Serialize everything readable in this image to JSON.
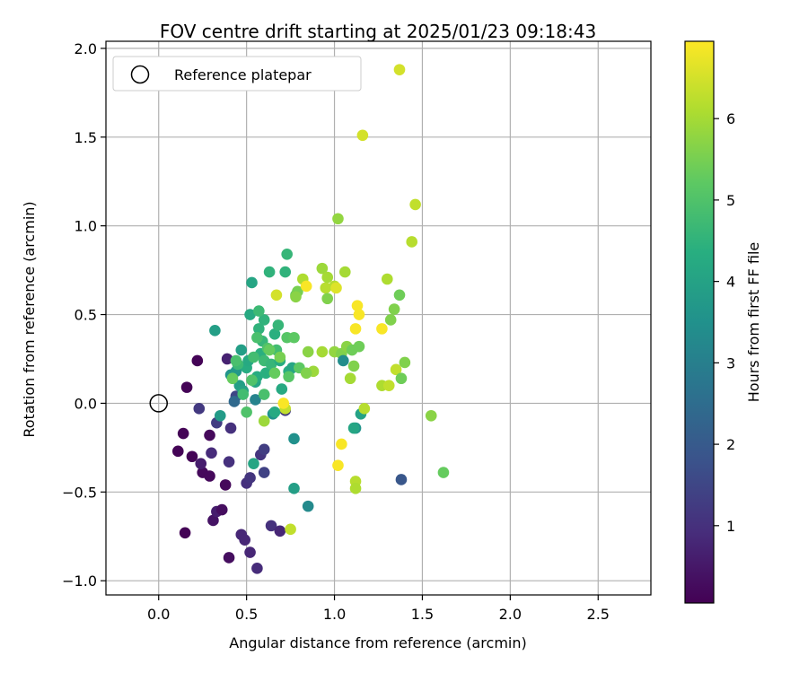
{
  "chart_data": {
    "type": "scatter",
    "title": "FOV centre drift starting at 2025/01/23 09:18:43",
    "xlabel": "Angular distance from reference (arcmin)",
    "ylabel": "Rotation from reference (arcmin)",
    "xlim": [
      -0.3,
      2.8
    ],
    "ylim": [
      -1.08,
      2.04
    ],
    "xticks": [
      0.0,
      0.5,
      1.0,
      1.5,
      2.0,
      2.5
    ],
    "xtick_labels": [
      "0.0",
      "0.5",
      "1.0",
      "1.5",
      "2.0",
      "2.5"
    ],
    "yticks": [
      -1.0,
      -0.5,
      0.0,
      0.5,
      1.0,
      1.5,
      2.0
    ],
    "ytick_labels": [
      "−1.0",
      "−0.5",
      "0.0",
      "0.5",
      "1.0",
      "1.5",
      "2.0"
    ],
    "grid": true,
    "legend": {
      "position": "top-left",
      "label": "Reference platepar"
    },
    "reference_point": {
      "x": 0.0,
      "y": 0.0
    },
    "colorbar": {
      "label": "Hours from first FF file",
      "range": [
        0.05,
        6.95
      ],
      "ticks": [
        1,
        2,
        3,
        4,
        5,
        6
      ],
      "tick_labels": [
        "1",
        "2",
        "3",
        "4",
        "5",
        "6"
      ],
      "colormap": "viridis"
    },
    "points": [
      [
        0.22,
        0.24,
        0.1
      ],
      [
        0.16,
        0.09,
        0.1
      ],
      [
        0.14,
        -0.17,
        0.1
      ],
      [
        0.11,
        -0.27,
        0.1
      ],
      [
        0.19,
        -0.3,
        0.1
      ],
      [
        0.15,
        -0.73,
        0.1
      ],
      [
        0.29,
        -0.18,
        0.2
      ],
      [
        0.25,
        -0.39,
        0.2
      ],
      [
        0.29,
        -0.41,
        0.2
      ],
      [
        0.24,
        -0.34,
        0.6
      ],
      [
        0.3,
        -0.28,
        0.9
      ],
      [
        0.23,
        -0.03,
        1.2
      ],
      [
        0.31,
        -0.66,
        0.4
      ],
      [
        0.33,
        -0.61,
        0.6
      ],
      [
        0.36,
        -0.6,
        0.3
      ],
      [
        0.38,
        -0.46,
        0.2
      ],
      [
        0.4,
        -0.87,
        0.3
      ],
      [
        0.4,
        -0.33,
        1.0
      ],
      [
        0.41,
        -0.14,
        1.0
      ],
      [
        0.33,
        -0.11,
        1.3
      ],
      [
        0.39,
        0.25,
        0.7
      ],
      [
        0.44,
        0.04,
        1.5
      ],
      [
        0.47,
        -0.74,
        0.8
      ],
      [
        0.49,
        -0.77,
        0.8
      ],
      [
        0.5,
        -0.45,
        1.0
      ],
      [
        0.52,
        -0.42,
        1.1
      ],
      [
        0.52,
        -0.84,
        0.8
      ],
      [
        0.56,
        -0.93,
        0.9
      ],
      [
        0.58,
        -0.29,
        1.1
      ],
      [
        0.6,
        -0.26,
        1.3
      ],
      [
        0.6,
        -0.39,
        1.4
      ],
      [
        0.64,
        -0.69,
        1.0
      ],
      [
        0.69,
        -0.72,
        0.8
      ],
      [
        0.72,
        -0.04,
        1.2
      ],
      [
        0.43,
        0.01,
        2.4
      ],
      [
        0.55,
        0.02,
        3.1
      ],
      [
        0.32,
        0.41,
        3.9
      ],
      [
        0.35,
        -0.07,
        3.8
      ],
      [
        0.41,
        0.16,
        3.6
      ],
      [
        0.44,
        0.18,
        3.7
      ],
      [
        0.46,
        0.1,
        3.9
      ],
      [
        0.47,
        0.3,
        3.9
      ],
      [
        0.48,
        0.07,
        4.0
      ],
      [
        0.5,
        0.2,
        4.3
      ],
      [
        0.51,
        0.24,
        4.2
      ],
      [
        0.53,
        0.68,
        4.1
      ],
      [
        0.52,
        0.5,
        4.2
      ],
      [
        0.55,
        0.12,
        4.1
      ],
      [
        0.56,
        0.15,
        4.3
      ],
      [
        0.57,
        0.42,
        4.5
      ],
      [
        0.58,
        0.28,
        4.4
      ],
      [
        0.59,
        0.35,
        4.6
      ],
      [
        0.6,
        0.47,
        4.5
      ],
      [
        0.6,
        0.24,
        4.7
      ],
      [
        0.61,
        0.17,
        4.4
      ],
      [
        0.63,
        0.74,
        4.5
      ],
      [
        0.64,
        0.22,
        4.6
      ],
      [
        0.66,
        0.39,
        4.4
      ],
      [
        0.67,
        0.3,
        4.8
      ],
      [
        0.68,
        0.44,
        4.6
      ],
      [
        0.69,
        0.24,
        4.3
      ],
      [
        0.7,
        0.08,
        4.2
      ],
      [
        0.72,
        0.74,
        4.5
      ],
      [
        0.73,
        0.84,
        4.6
      ],
      [
        0.74,
        0.18,
        4.3
      ],
      [
        0.76,
        0.2,
        4.1
      ],
      [
        0.77,
        -0.2,
        3.5
      ],
      [
        0.77,
        -0.48,
        3.9
      ],
      [
        0.85,
        -0.58,
        3.3
      ],
      [
        0.57,
        0.52,
        4.7
      ],
      [
        0.56,
        0.37,
        4.9
      ],
      [
        0.62,
        0.31,
        5.0
      ],
      [
        0.65,
        -0.06,
        3.5
      ],
      [
        0.66,
        -0.05,
        4.2
      ],
      [
        0.45,
        0.22,
        4.7
      ],
      [
        0.48,
        0.05,
        4.8
      ],
      [
        0.5,
        -0.05,
        5.0
      ],
      [
        0.42,
        0.14,
        5.3
      ],
      [
        0.53,
        0.13,
        5.0
      ],
      [
        0.54,
        0.26,
        4.8
      ],
      [
        0.44,
        0.24,
        4.9
      ],
      [
        0.54,
        -0.34,
        4.1
      ],
      [
        0.6,
        0.05,
        4.9
      ],
      [
        0.63,
        0.3,
        5.3
      ],
      [
        0.73,
        0.37,
        5.1
      ],
      [
        0.77,
        0.37,
        5.2
      ],
      [
        0.66,
        0.17,
        5.3
      ],
      [
        0.69,
        0.26,
        5.5
      ],
      [
        0.74,
        0.15,
        5.1
      ],
      [
        0.8,
        0.2,
        5.2
      ],
      [
        0.6,
        -0.1,
        5.9
      ],
      [
        0.72,
        -0.03,
        6.3
      ],
      [
        0.78,
        0.61,
        5.3
      ],
      [
        0.79,
        0.63,
        5.5
      ],
      [
        0.78,
        0.6,
        5.7
      ],
      [
        0.82,
        0.7,
        6.1
      ],
      [
        0.85,
        0.29,
        5.7
      ],
      [
        0.88,
        0.18,
        5.9
      ],
      [
        0.84,
        0.17,
        5.6
      ],
      [
        0.67,
        0.61,
        6.5
      ],
      [
        0.71,
        0.0,
        6.9
      ],
      [
        0.84,
        0.66,
        6.9
      ],
      [
        0.93,
        0.29,
        6.0
      ],
      [
        0.93,
        0.76,
        5.9
      ],
      [
        0.95,
        0.65,
        6.2
      ],
      [
        0.96,
        0.71,
        6.0
      ],
      [
        0.96,
        0.59,
        5.6
      ],
      [
        1.0,
        0.29,
        5.8
      ],
      [
        1.0,
        0.66,
        6.2
      ],
      [
        1.01,
        0.65,
        6.6
      ],
      [
        1.02,
        1.04,
        5.8
      ],
      [
        1.04,
        0.28,
        5.6
      ],
      [
        1.05,
        0.24,
        3.4
      ],
      [
        1.06,
        0.74,
        6.0
      ],
      [
        1.07,
        0.32,
        5.7
      ],
      [
        1.09,
        0.14,
        6.0
      ],
      [
        1.1,
        0.3,
        5.4
      ],
      [
        1.11,
        0.21,
        5.6
      ],
      [
        1.12,
        0.42,
        6.9
      ],
      [
        1.12,
        -0.14,
        3.6
      ],
      [
        1.13,
        0.55,
        6.9
      ],
      [
        1.14,
        0.5,
        6.9
      ],
      [
        1.14,
        0.32,
        5.4
      ],
      [
        1.15,
        -0.06,
        4.0
      ],
      [
        1.16,
        1.51,
        6.5
      ],
      [
        1.17,
        -0.03,
        6.2
      ],
      [
        1.02,
        -0.35,
        6.9
      ],
      [
        1.04,
        -0.23,
        6.9
      ],
      [
        1.12,
        -0.44,
        6.2
      ],
      [
        1.12,
        -0.48,
        6.1
      ],
      [
        0.75,
        -0.71,
        6.3
      ],
      [
        1.27,
        0.42,
        6.9
      ],
      [
        1.27,
        0.1,
        6.1
      ],
      [
        1.3,
        0.7,
        6.1
      ],
      [
        1.31,
        0.1,
        6.3
      ],
      [
        1.32,
        0.47,
        5.6
      ],
      [
        1.34,
        0.53,
        5.6
      ],
      [
        1.35,
        0.19,
        6.3
      ],
      [
        1.37,
        0.61,
        5.4
      ],
      [
        1.38,
        0.14,
        5.4
      ],
      [
        1.38,
        -0.43,
        1.9
      ],
      [
        1.37,
        1.88,
        6.5
      ],
      [
        1.4,
        0.23,
        5.6
      ],
      [
        1.44,
        0.91,
        6.2
      ],
      [
        1.46,
        1.12,
        6.3
      ],
      [
        1.55,
        -0.07,
        5.7
      ],
      [
        1.62,
        -0.39,
        5.3
      ],
      [
        1.11,
        -0.14,
        4.1
      ]
    ]
  }
}
